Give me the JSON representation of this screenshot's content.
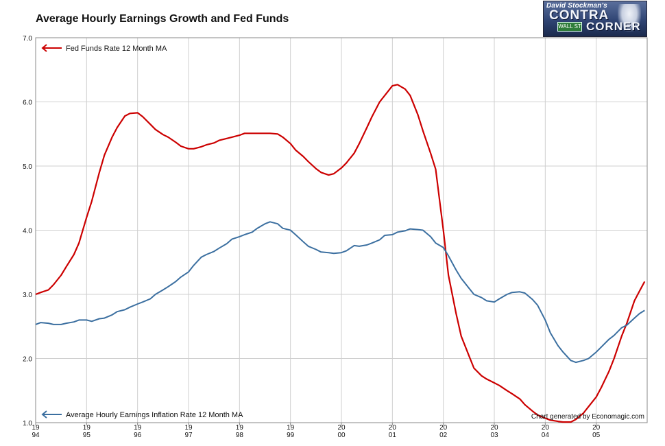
{
  "chart_data": {
    "type": "line",
    "title": "Average Hourly Earnings Growth and Fed Funds",
    "credit": "Chart generated by Economagic.com",
    "xlabel": "",
    "ylabel": "",
    "ylim": [
      1.0,
      7.0
    ],
    "xlim": [
      1994.0,
      2006.0
    ],
    "y_ticks": [
      "1.0",
      "2.0",
      "3.0",
      "4.0",
      "5.0",
      "6.0",
      "7.0"
    ],
    "x_ticks": [
      {
        "x": 1994,
        "top": "19",
        "bottom": "94"
      },
      {
        "x": 1995,
        "top": "19",
        "bottom": "95"
      },
      {
        "x": 1996,
        "top": "19",
        "bottom": "96"
      },
      {
        "x": 1997,
        "top": "19",
        "bottom": "97"
      },
      {
        "x": 1998,
        "top": "19",
        "bottom": "98"
      },
      {
        "x": 1999,
        "top": "19",
        "bottom": "99"
      },
      {
        "x": 2000,
        "top": "20",
        "bottom": "00"
      },
      {
        "x": 2001,
        "top": "20",
        "bottom": "01"
      },
      {
        "x": 2002,
        "top": "20",
        "bottom": "02"
      },
      {
        "x": 2003,
        "top": "20",
        "bottom": "03"
      },
      {
        "x": 2004,
        "top": "20",
        "bottom": "04"
      },
      {
        "x": 2005,
        "top": "20",
        "bottom": "05"
      }
    ],
    "grid": true,
    "series": [
      {
        "name": "Fed Funds Rate 12 Month MA",
        "color": "#cc0000",
        "legend_position": "top-left",
        "points": [
          [
            1994.0,
            3.0
          ],
          [
            1994.1,
            3.03
          ],
          [
            1994.25,
            3.07
          ],
          [
            1994.35,
            3.15
          ],
          [
            1994.5,
            3.3
          ],
          [
            1994.6,
            3.43
          ],
          [
            1994.75,
            3.62
          ],
          [
            1994.85,
            3.8
          ],
          [
            1995.0,
            4.2
          ],
          [
            1995.1,
            4.45
          ],
          [
            1995.25,
            4.9
          ],
          [
            1995.35,
            5.17
          ],
          [
            1995.5,
            5.45
          ],
          [
            1995.6,
            5.6
          ],
          [
            1995.75,
            5.78
          ],
          [
            1995.85,
            5.82
          ],
          [
            1996.0,
            5.83
          ],
          [
            1996.1,
            5.77
          ],
          [
            1996.25,
            5.65
          ],
          [
            1996.35,
            5.57
          ],
          [
            1996.5,
            5.49
          ],
          [
            1996.6,
            5.45
          ],
          [
            1996.75,
            5.37
          ],
          [
            1996.85,
            5.31
          ],
          [
            1997.0,
            5.27
          ],
          [
            1997.1,
            5.27
          ],
          [
            1997.25,
            5.3
          ],
          [
            1997.35,
            5.33
          ],
          [
            1997.5,
            5.36
          ],
          [
            1997.6,
            5.4
          ],
          [
            1997.75,
            5.43
          ],
          [
            1997.85,
            5.45
          ],
          [
            1998.0,
            5.48
          ],
          [
            1998.1,
            5.51
          ],
          [
            1998.25,
            5.51
          ],
          [
            1998.35,
            5.51
          ],
          [
            1998.5,
            5.51
          ],
          [
            1998.6,
            5.51
          ],
          [
            1998.75,
            5.5
          ],
          [
            1998.85,
            5.45
          ],
          [
            1999.0,
            5.35
          ],
          [
            1999.1,
            5.25
          ],
          [
            1999.25,
            5.15
          ],
          [
            1999.35,
            5.07
          ],
          [
            1999.5,
            4.96
          ],
          [
            1999.6,
            4.9
          ],
          [
            1999.75,
            4.86
          ],
          [
            1999.85,
            4.88
          ],
          [
            2000.0,
            4.97
          ],
          [
            2000.1,
            5.05
          ],
          [
            2000.25,
            5.2
          ],
          [
            2000.35,
            5.35
          ],
          [
            2000.5,
            5.6
          ],
          [
            2000.6,
            5.77
          ],
          [
            2000.75,
            6.0
          ],
          [
            2000.85,
            6.1
          ],
          [
            2001.0,
            6.25
          ],
          [
            2001.1,
            6.27
          ],
          [
            2001.25,
            6.2
          ],
          [
            2001.35,
            6.1
          ],
          [
            2001.5,
            5.8
          ],
          [
            2001.6,
            5.55
          ],
          [
            2001.75,
            5.2
          ],
          [
            2001.85,
            4.95
          ],
          [
            2002.0,
            4.0
          ],
          [
            2002.1,
            3.3
          ],
          [
            2002.25,
            2.7
          ],
          [
            2002.35,
            2.35
          ],
          [
            2002.5,
            2.05
          ],
          [
            2002.6,
            1.85
          ],
          [
            2002.75,
            1.73
          ],
          [
            2002.85,
            1.68
          ],
          [
            2003.0,
            1.62
          ],
          [
            2003.1,
            1.58
          ],
          [
            2003.25,
            1.5
          ],
          [
            2003.35,
            1.45
          ],
          [
            2003.5,
            1.37
          ],
          [
            2003.6,
            1.28
          ],
          [
            2003.75,
            1.18
          ],
          [
            2003.85,
            1.12
          ],
          [
            2004.0,
            1.07
          ],
          [
            2004.1,
            1.04
          ],
          [
            2004.25,
            1.02
          ],
          [
            2004.35,
            1.01
          ],
          [
            2004.5,
            1.01
          ],
          [
            2004.6,
            1.05
          ],
          [
            2004.75,
            1.15
          ],
          [
            2004.85,
            1.25
          ],
          [
            2005.0,
            1.4
          ],
          [
            2005.1,
            1.55
          ],
          [
            2005.25,
            1.8
          ],
          [
            2005.35,
            2.0
          ],
          [
            2005.5,
            2.35
          ],
          [
            2005.6,
            2.55
          ],
          [
            2005.75,
            2.9
          ],
          [
            2005.85,
            3.05
          ],
          [
            2005.95,
            3.2
          ]
        ]
      },
      {
        "name": "Average Hourly Earnings Inflation Rate 12 Month MA",
        "color": "#3b6fa0",
        "legend_position": "bottom-left",
        "points": [
          [
            1994.0,
            2.53
          ],
          [
            1994.1,
            2.56
          ],
          [
            1994.25,
            2.55
          ],
          [
            1994.35,
            2.53
          ],
          [
            1994.5,
            2.53
          ],
          [
            1994.6,
            2.55
          ],
          [
            1994.75,
            2.57
          ],
          [
            1994.85,
            2.6
          ],
          [
            1995.0,
            2.6
          ],
          [
            1995.1,
            2.58
          ],
          [
            1995.25,
            2.62
          ],
          [
            1995.35,
            2.63
          ],
          [
            1995.5,
            2.68
          ],
          [
            1995.6,
            2.73
          ],
          [
            1995.75,
            2.76
          ],
          [
            1995.85,
            2.8
          ],
          [
            1996.0,
            2.85
          ],
          [
            1996.1,
            2.88
          ],
          [
            1996.25,
            2.93
          ],
          [
            1996.35,
            3.0
          ],
          [
            1996.5,
            3.07
          ],
          [
            1996.6,
            3.12
          ],
          [
            1996.75,
            3.2
          ],
          [
            1996.85,
            3.27
          ],
          [
            1997.0,
            3.35
          ],
          [
            1997.1,
            3.45
          ],
          [
            1997.25,
            3.58
          ],
          [
            1997.35,
            3.62
          ],
          [
            1997.5,
            3.67
          ],
          [
            1997.6,
            3.72
          ],
          [
            1997.75,
            3.79
          ],
          [
            1997.85,
            3.86
          ],
          [
            1998.0,
            3.9
          ],
          [
            1998.1,
            3.93
          ],
          [
            1998.25,
            3.97
          ],
          [
            1998.35,
            4.03
          ],
          [
            1998.5,
            4.1
          ],
          [
            1998.6,
            4.13
          ],
          [
            1998.75,
            4.1
          ],
          [
            1998.85,
            4.03
          ],
          [
            1999.0,
            4.0
          ],
          [
            1999.1,
            3.93
          ],
          [
            1999.25,
            3.82
          ],
          [
            1999.35,
            3.75
          ],
          [
            1999.5,
            3.7
          ],
          [
            1999.6,
            3.66
          ],
          [
            1999.75,
            3.65
          ],
          [
            1999.85,
            3.64
          ],
          [
            2000.0,
            3.65
          ],
          [
            2000.1,
            3.68
          ],
          [
            2000.25,
            3.76
          ],
          [
            2000.35,
            3.75
          ],
          [
            2000.5,
            3.77
          ],
          [
            2000.6,
            3.8
          ],
          [
            2000.75,
            3.85
          ],
          [
            2000.85,
            3.92
          ],
          [
            2001.0,
            3.93
          ],
          [
            2001.1,
            3.97
          ],
          [
            2001.25,
            3.99
          ],
          [
            2001.35,
            4.02
          ],
          [
            2001.5,
            4.01
          ],
          [
            2001.6,
            4.0
          ],
          [
            2001.75,
            3.9
          ],
          [
            2001.85,
            3.8
          ],
          [
            2002.0,
            3.73
          ],
          [
            2002.1,
            3.6
          ],
          [
            2002.25,
            3.38
          ],
          [
            2002.35,
            3.25
          ],
          [
            2002.5,
            3.1
          ],
          [
            2002.6,
            3.0
          ],
          [
            2002.75,
            2.95
          ],
          [
            2002.85,
            2.9
          ],
          [
            2003.0,
            2.88
          ],
          [
            2003.1,
            2.93
          ],
          [
            2003.25,
            3.0
          ],
          [
            2003.35,
            3.03
          ],
          [
            2003.5,
            3.04
          ],
          [
            2003.6,
            3.02
          ],
          [
            2003.75,
            2.92
          ],
          [
            2003.85,
            2.83
          ],
          [
            2004.0,
            2.6
          ],
          [
            2004.1,
            2.4
          ],
          [
            2004.25,
            2.2
          ],
          [
            2004.35,
            2.1
          ],
          [
            2004.5,
            1.97
          ],
          [
            2004.6,
            1.94
          ],
          [
            2004.75,
            1.97
          ],
          [
            2004.85,
            2.0
          ],
          [
            2005.0,
            2.1
          ],
          [
            2005.1,
            2.18
          ],
          [
            2005.25,
            2.3
          ],
          [
            2005.35,
            2.36
          ],
          [
            2005.5,
            2.48
          ],
          [
            2005.6,
            2.52
          ],
          [
            2005.75,
            2.63
          ],
          [
            2005.85,
            2.7
          ],
          [
            2005.95,
            2.75
          ]
        ]
      }
    ]
  },
  "logo": {
    "line1": "David Stockman's",
    "line2": "CONTRA",
    "line3": "CORNER",
    "sign": "WALL ST"
  }
}
